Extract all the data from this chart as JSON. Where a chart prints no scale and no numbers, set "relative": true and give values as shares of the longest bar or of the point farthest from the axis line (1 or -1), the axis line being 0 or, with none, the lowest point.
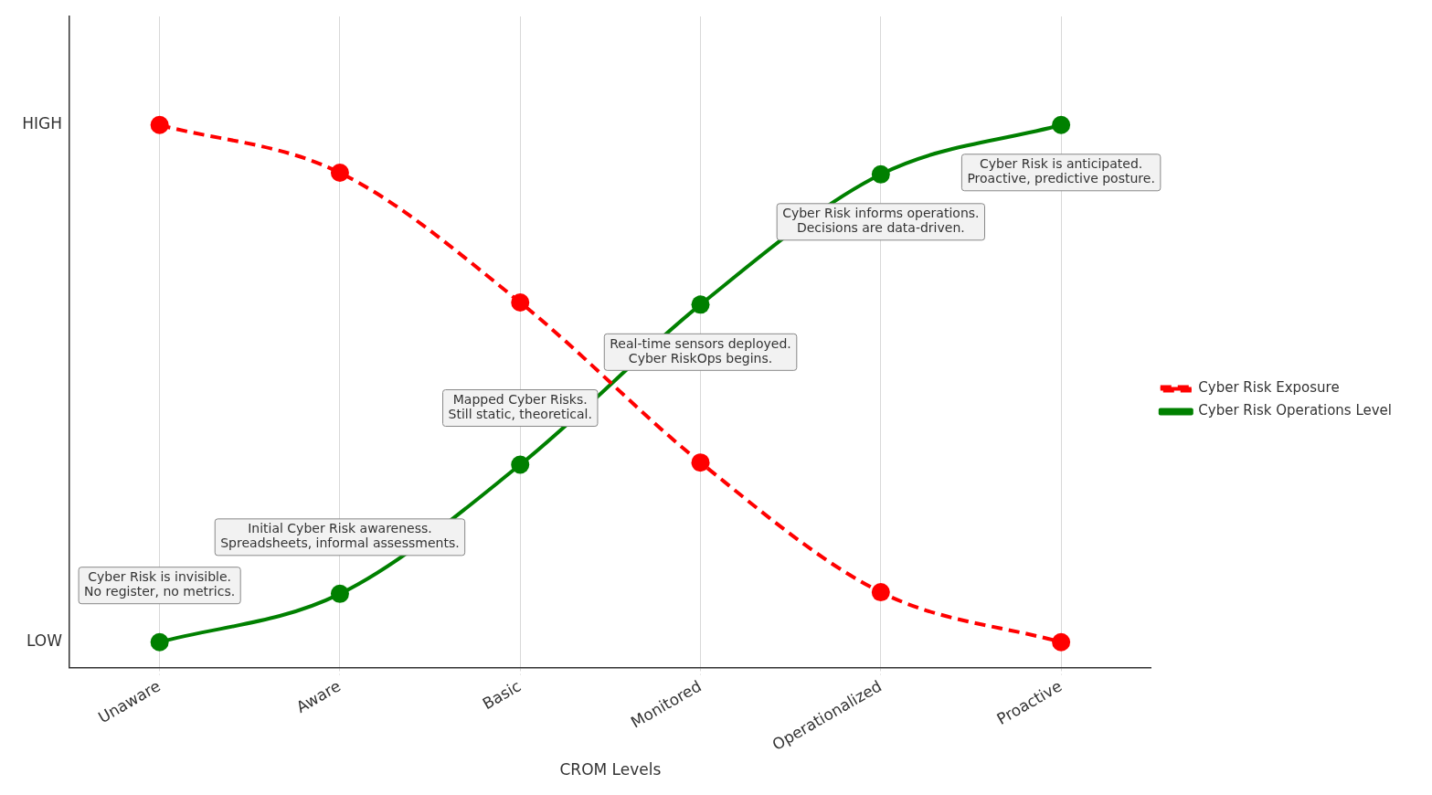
{
  "chart_data": {
    "type": "line",
    "xlabel": "CROM Levels",
    "categories": [
      "Unaware",
      "Aware",
      "Basic",
      "Monitored",
      "Operationalized",
      "Proactive"
    ],
    "series": [
      {
        "name": "Cyber Risk Exposure",
        "color": "#ff0000",
        "line_style": "dashed",
        "values": [
          1.0,
          0.912,
          0.673,
          0.378,
          0.139,
          0.047
        ]
      },
      {
        "name": "Cyber Risk Operations Level",
        "color": "#008000",
        "line_style": "solid",
        "values": [
          0.047,
          0.136,
          0.374,
          0.669,
          0.909,
          1.0
        ]
      }
    ],
    "relative": true,
    "grid": "x",
    "legend": "right",
    "marker": "circle",
    "annotations": [
      "Cyber Risk is invisible.\nNo register, no metrics.",
      "Initial Cyber Risk awareness.\nSpreadsheets, informal assessments.",
      "Mapped Cyber Risks.\nStill static, theoretical.",
      "Real-time sensors deployed.\nCyber RiskOps begins.",
      "Cyber Risk informs operations.\nDecisions are data-driven.",
      "Cyber Risk is anticipated.\nProactive, predictive posture.",
      "HIGH",
      "LOW"
    ]
  }
}
